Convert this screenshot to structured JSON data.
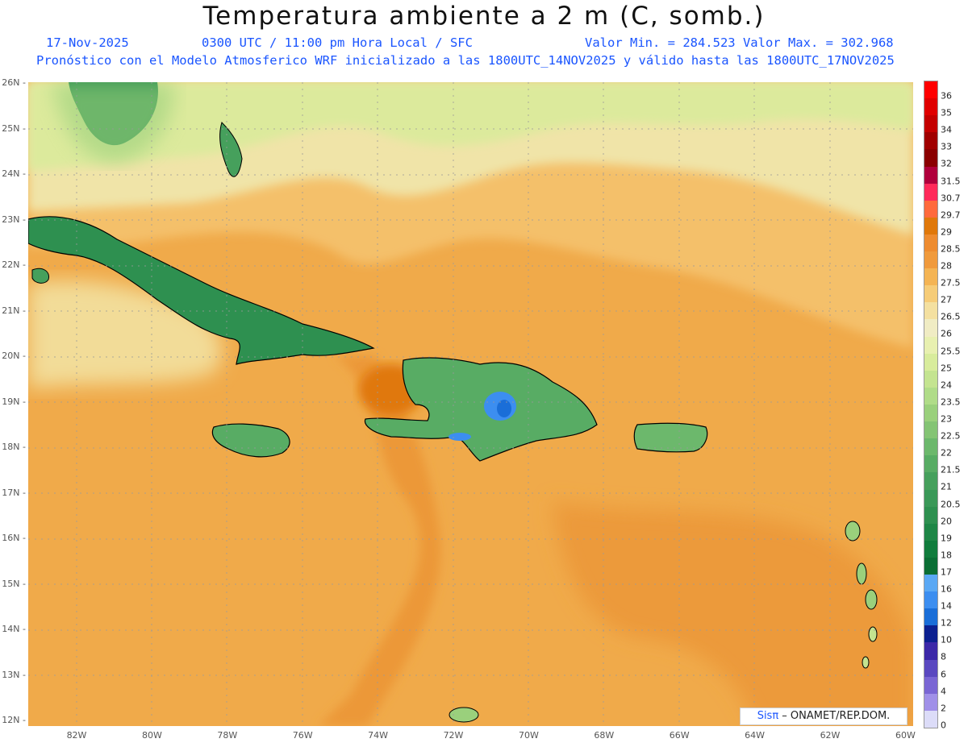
{
  "header": {
    "title": "Temperatura ambiente a 2 m (C, somb.)",
    "date": "17-Nov-2025",
    "time": "0300 UTC / 11:00 pm Hora Local / SFC",
    "minmax": "Valor Min. = 284.523  Valor Max. = 302.968",
    "model_line": "Pronóstico con el Modelo Atmosferico WRF inicializado a las 1800UTC_14NOV2025 y válido hasta las  1800UTC_17NOV2025"
  },
  "axes": {
    "lat_labels": [
      "26N",
      "25N",
      "24N",
      "23N",
      "22N",
      "21N",
      "20N",
      "19N",
      "18N",
      "17N",
      "16N",
      "15N",
      "14N",
      "13N",
      "12N"
    ],
    "lon_labels": [
      "82W",
      "80W",
      "78W",
      "76W",
      "74W",
      "72W",
      "70W",
      "68W",
      "66W",
      "64W",
      "62W",
      "60W"
    ],
    "lat_range": [
      12,
      26
    ],
    "lon_range": [
      -83.2,
      -60
    ]
  },
  "legend": {
    "labels": [
      "36",
      "35",
      "34",
      "33",
      "32",
      "31.5",
      "30.7",
      "29.7",
      "29",
      "28.5",
      "28",
      "27.5",
      "27",
      "26.5",
      "26",
      "25.5",
      "25",
      "24",
      "23.5",
      "23",
      "22.5",
      "22",
      "21.5",
      "21",
      "20.5",
      "20",
      "19",
      "18",
      "17",
      "16",
      "14",
      "12",
      "10",
      "8",
      "6",
      "4",
      "2",
      "0"
    ],
    "colors": [
      "#ff0000",
      "#e00000",
      "#c40000",
      "#a00000",
      "#8a0000",
      "#b0003c",
      "#ff2a5a",
      "#ff6a3c",
      "#e0780a",
      "#ee8c30",
      "#f09a3c",
      "#f4b454",
      "#f6cc78",
      "#f4e0a0",
      "#f0ecc4",
      "#e8f0b0",
      "#d8ec9c",
      "#c4e490",
      "#b0dc88",
      "#9ad07c",
      "#84c474",
      "#6cb86c",
      "#58ac64",
      "#46a05c",
      "#3a9858",
      "#2e9050",
      "#1e8646",
      "#107c3c",
      "#0a6e34",
      "#5aa8f4",
      "#3c8ef0",
      "#1a6ed8",
      "#0c2090",
      "#3c28a8",
      "#5a48c0",
      "#7a66d4",
      "#a090e8",
      "#dcdcf8"
    ]
  },
  "credit": {
    "logo": "Sisπ",
    "text": " – ONAMET/REP.DOM."
  },
  "places": [
    "Cuba",
    "Jamaica",
    "Hispaniola",
    "Puerto Rico",
    "Florida",
    "Bahamas",
    "Lesser Antilles"
  ]
}
